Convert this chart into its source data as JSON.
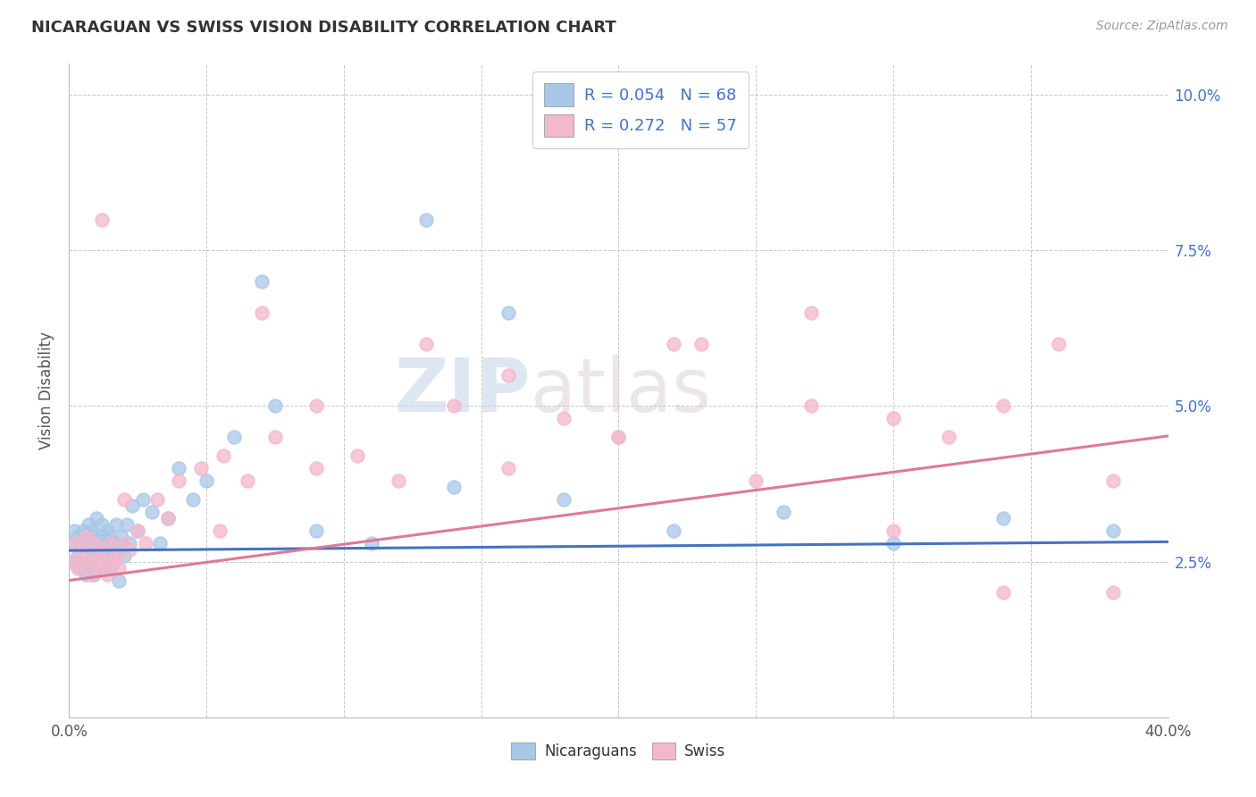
{
  "title": "NICARAGUAN VS SWISS VISION DISABILITY CORRELATION CHART",
  "source": "Source: ZipAtlas.com",
  "ylabel": "Vision Disability",
  "xlim": [
    0.0,
    0.4
  ],
  "ylim": [
    0.0,
    0.105
  ],
  "blue_R": 0.054,
  "blue_N": 68,
  "pink_R": 0.272,
  "pink_N": 57,
  "blue_color": "#a8c8e8",
  "pink_color": "#f4b8cc",
  "blue_line_color": "#4472C4",
  "pink_line_color": "#e07898",
  "watermark_zip": "ZIP",
  "watermark_atlas": "atlas",
  "blue_intercept": 0.0268,
  "blue_slope": 0.0035,
  "pink_intercept": 0.022,
  "pink_slope": 0.058,
  "blue_points_x": [
    0.001,
    0.002,
    0.002,
    0.003,
    0.003,
    0.004,
    0.004,
    0.005,
    0.005,
    0.005,
    0.006,
    0.006,
    0.006,
    0.007,
    0.007,
    0.007,
    0.008,
    0.008,
    0.008,
    0.009,
    0.009,
    0.009,
    0.01,
    0.01,
    0.01,
    0.011,
    0.011,
    0.012,
    0.012,
    0.012,
    0.013,
    0.013,
    0.014,
    0.014,
    0.015,
    0.015,
    0.016,
    0.016,
    0.017,
    0.018,
    0.018,
    0.019,
    0.02,
    0.021,
    0.022,
    0.023,
    0.025,
    0.027,
    0.03,
    0.033,
    0.036,
    0.04,
    0.045,
    0.05,
    0.06,
    0.075,
    0.09,
    0.11,
    0.14,
    0.18,
    0.22,
    0.26,
    0.3,
    0.34,
    0.38,
    0.07,
    0.13,
    0.16
  ],
  "blue_points_y": [
    0.028,
    0.03,
    0.025,
    0.029,
    0.026,
    0.028,
    0.024,
    0.03,
    0.027,
    0.025,
    0.029,
    0.026,
    0.023,
    0.028,
    0.025,
    0.031,
    0.027,
    0.024,
    0.03,
    0.026,
    0.029,
    0.023,
    0.027,
    0.025,
    0.032,
    0.028,
    0.024,
    0.029,
    0.026,
    0.031,
    0.027,
    0.024,
    0.03,
    0.026,
    0.029,
    0.024,
    0.028,
    0.025,
    0.031,
    0.027,
    0.022,
    0.029,
    0.026,
    0.031,
    0.028,
    0.034,
    0.03,
    0.035,
    0.033,
    0.028,
    0.032,
    0.04,
    0.035,
    0.038,
    0.045,
    0.05,
    0.03,
    0.028,
    0.037,
    0.035,
    0.03,
    0.033,
    0.028,
    0.032,
    0.03,
    0.07,
    0.08,
    0.065
  ],
  "pink_points_x": [
    0.001,
    0.002,
    0.003,
    0.004,
    0.005,
    0.006,
    0.007,
    0.008,
    0.009,
    0.01,
    0.011,
    0.012,
    0.013,
    0.014,
    0.015,
    0.016,
    0.017,
    0.018,
    0.02,
    0.022,
    0.025,
    0.028,
    0.032,
    0.036,
    0.04,
    0.048,
    0.056,
    0.065,
    0.075,
    0.09,
    0.105,
    0.12,
    0.14,
    0.16,
    0.18,
    0.2,
    0.22,
    0.25,
    0.27,
    0.3,
    0.32,
    0.34,
    0.36,
    0.38,
    0.23,
    0.27,
    0.09,
    0.13,
    0.16,
    0.2,
    0.34,
    0.38,
    0.055,
    0.3,
    0.07,
    0.02,
    0.012
  ],
  "pink_points_y": [
    0.025,
    0.028,
    0.024,
    0.027,
    0.025,
    0.029,
    0.026,
    0.023,
    0.028,
    0.025,
    0.024,
    0.027,
    0.025,
    0.023,
    0.028,
    0.025,
    0.026,
    0.024,
    0.028,
    0.027,
    0.03,
    0.028,
    0.035,
    0.032,
    0.038,
    0.04,
    0.042,
    0.038,
    0.045,
    0.04,
    0.042,
    0.038,
    0.05,
    0.04,
    0.048,
    0.045,
    0.06,
    0.038,
    0.05,
    0.048,
    0.045,
    0.05,
    0.06,
    0.038,
    0.06,
    0.065,
    0.05,
    0.06,
    0.055,
    0.045,
    0.02,
    0.02,
    0.03,
    0.03,
    0.065,
    0.035,
    0.08
  ]
}
